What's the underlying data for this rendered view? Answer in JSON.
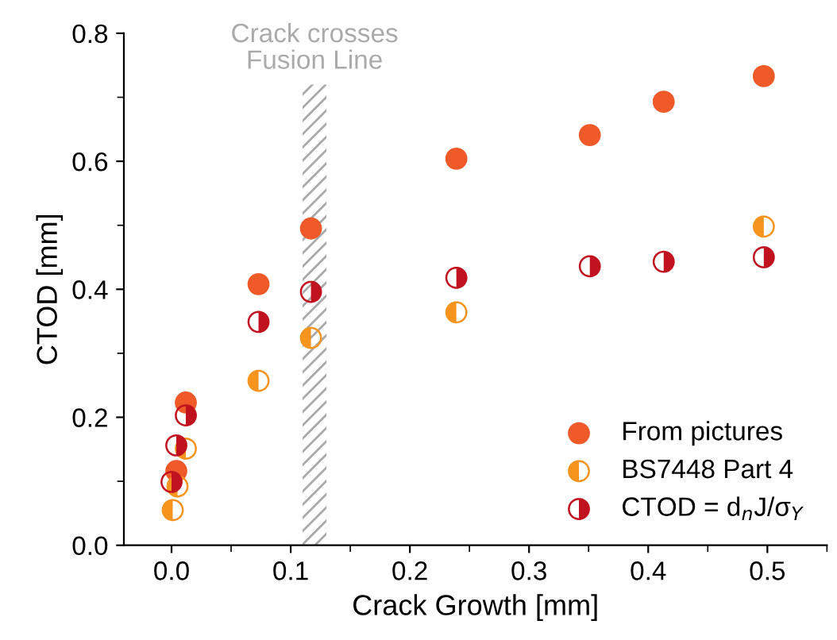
{
  "chart_data": {
    "type": "scatter",
    "xlabel": "Crack Growth [mm]",
    "ylabel": "CTOD [mm]",
    "xlim": [
      -0.04,
      0.55
    ],
    "xticks": [
      {
        "value": 0,
        "label": "0.0"
      },
      0.1,
      0.2,
      0.3,
      0.4,
      0.5
    ],
    "ylim": [
      0,
      0.8
    ],
    "yticks": [
      {
        "value": 0,
        "label": "0.0"
      },
      0.2,
      0.4,
      0.6,
      0.8
    ],
    "grid": false,
    "legend": "bottom right",
    "marker": "circle",
    "bands": [
      {
        "axis": "x",
        "from": 0.11,
        "to": 0.13,
        "label": "Crack crosses\nFusion Line",
        "color": "#aaaaaa"
      }
    ],
    "series": [
      {
        "name": "From pictures",
        "color": "#f05a28",
        "x": [
          0.012,
          0.004,
          0.073,
          0.117,
          0.239,
          0.351,
          0.413,
          0.497
        ],
        "values": [
          0.223,
          0.116,
          0.408,
          0.495,
          0.604,
          0.641,
          0.693,
          0.733
        ]
      },
      {
        "name": "BS7448 Part 4",
        "color": "#f7941d",
        "x": [
          0.001,
          0.005,
          0.012,
          0.073,
          0.117,
          0.239,
          0.497
        ],
        "values": [
          0.055,
          0.092,
          0.151,
          0.257,
          0.324,
          0.364,
          0.498
        ]
      },
      {
        "name": "CTOD = d$_{n}$J/σ$_{Y}$",
        "color": "#c1121f",
        "x": [
          0.0,
          0.004,
          0.012,
          0.073,
          0.117,
          0.239,
          0.351,
          0.413,
          0.497
        ],
        "values": [
          0.099,
          0.156,
          0.203,
          0.349,
          0.396,
          0.418,
          0.436,
          0.443,
          0.45
        ]
      }
    ]
  }
}
